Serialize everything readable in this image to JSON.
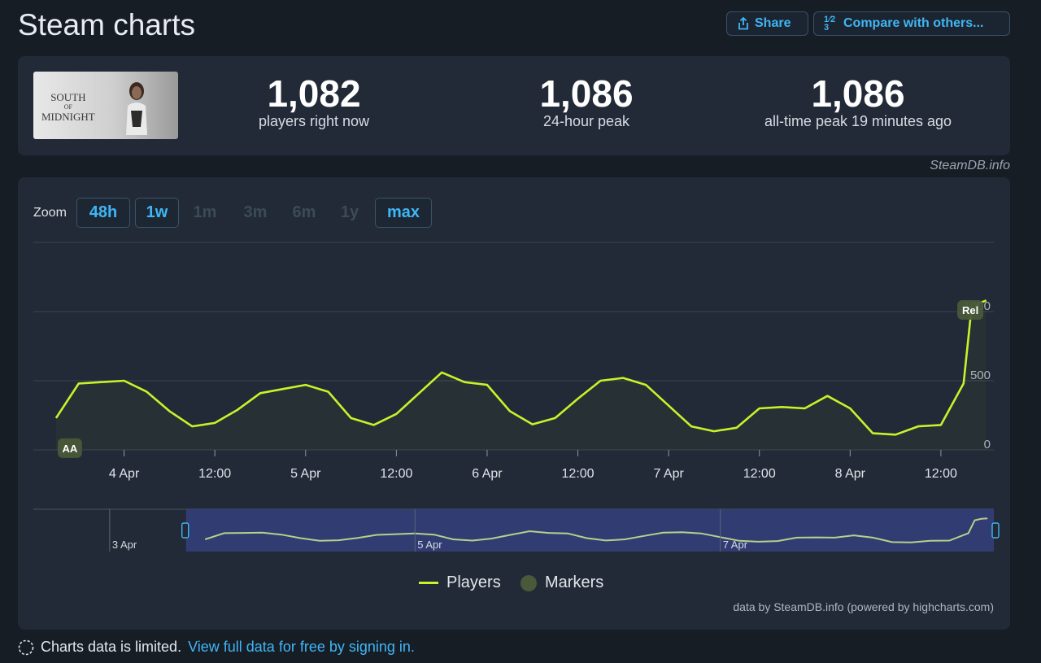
{
  "header": {
    "title": "Steam charts",
    "share_label": "Share",
    "compare_label": "Compare with others...",
    "compare_icon_text": "1⁄2 3"
  },
  "game": {
    "cover_logo_line1": "SOUTH",
    "cover_logo_line2": "OF",
    "cover_logo_line3": "MIDNIGHT"
  },
  "stats": [
    {
      "value": "1,082",
      "label": "players right now"
    },
    {
      "value": "1,086",
      "label": "24-hour peak"
    },
    {
      "value": "1,086",
      "label": "all-time peak 19 minutes ago"
    }
  ],
  "attribution": "SteamDB.info",
  "zoom": {
    "label": "Zoom",
    "buttons": [
      {
        "label": "48h",
        "active": true
      },
      {
        "label": "1w",
        "active": true
      },
      {
        "label": "1m",
        "active": false
      },
      {
        "label": "3m",
        "active": false
      },
      {
        "label": "6m",
        "active": false
      },
      {
        "label": "1y",
        "active": false
      },
      {
        "label": "max",
        "active": true
      }
    ]
  },
  "chart_data": {
    "type": "line",
    "series": [
      {
        "name": "Players",
        "color": "#c8f22a",
        "x": [
          "3 Apr 15:00",
          "3 Apr 18:00",
          "3 Apr 21:00",
          "4 Apr 00:00",
          "4 Apr 03:00",
          "4 Apr 06:00",
          "4 Apr 09:00",
          "4 Apr 12:00",
          "4 Apr 15:00",
          "4 Apr 18:00",
          "4 Apr 21:00",
          "5 Apr 00:00",
          "5 Apr 03:00",
          "5 Apr 06:00",
          "5 Apr 09:00",
          "5 Apr 12:00",
          "5 Apr 15:00",
          "5 Apr 18:00",
          "5 Apr 21:00",
          "6 Apr 00:00",
          "6 Apr 03:00",
          "6 Apr 06:00",
          "6 Apr 09:00",
          "6 Apr 12:00",
          "6 Apr 15:00",
          "6 Apr 18:00",
          "6 Apr 21:00",
          "7 Apr 00:00",
          "7 Apr 03:00",
          "7 Apr 06:00",
          "7 Apr 09:00",
          "7 Apr 12:00",
          "7 Apr 15:00",
          "7 Apr 18:00",
          "7 Apr 21:00",
          "8 Apr 00:00",
          "8 Apr 03:00",
          "8 Apr 06:00",
          "8 Apr 09:00",
          "8 Apr 12:00",
          "8 Apr 15:00",
          "8 Apr 16:00",
          "8 Apr 17:00",
          "8 Apr 18:00"
        ],
        "y": [
          230,
          480,
          490,
          500,
          420,
          280,
          170,
          195,
          290,
          410,
          440,
          470,
          420,
          230,
          180,
          260,
          410,
          560,
          490,
          470,
          280,
          185,
          230,
          370,
          500,
          520,
          470,
          320,
          170,
          135,
          160,
          300,
          310,
          300,
          390,
          300,
          120,
          110,
          170,
          180,
          480,
          1000,
          1060,
          1080
        ]
      }
    ],
    "markers": [
      {
        "label": "AA",
        "x": "3 Apr 15:00"
      },
      {
        "label": "Rel",
        "x": "8 Apr 16:00"
      }
    ],
    "x_ticks": [
      "4 Apr",
      "12:00",
      "5 Apr",
      "12:00",
      "6 Apr",
      "12:00",
      "7 Apr",
      "12:00",
      "8 Apr",
      "12:00"
    ],
    "y_ticks": [
      "0",
      "500",
      "1000"
    ],
    "ylim": [
      0,
      1500
    ],
    "navigator_labels": [
      "3 Apr",
      "5 Apr",
      "7 Apr"
    ],
    "legend": [
      {
        "name": "Players",
        "symbol": "line",
        "color": "#c8f22a"
      },
      {
        "name": "Markers",
        "symbol": "circle",
        "color": "#49593a"
      }
    ],
    "legend_position": "bottom-center"
  },
  "credit": "data by SteamDB.info (powered by highcharts.com)",
  "footer": {
    "text": "Charts data is limited.",
    "link": "View full data for free by signing in."
  }
}
